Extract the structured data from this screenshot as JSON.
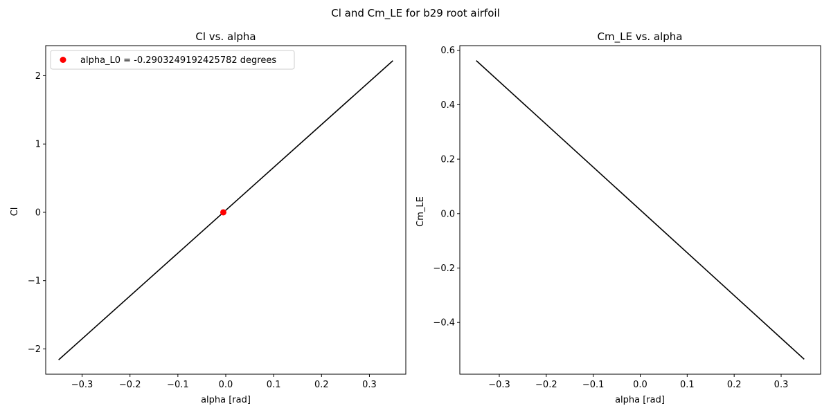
{
  "figure": {
    "suptitle": "Cl and Cm_LE for b29 root airfoil"
  },
  "chart_data": [
    {
      "type": "line",
      "title": "Cl vs. alpha",
      "xlabel": "alpha [rad]",
      "ylabel": "Cl",
      "xlim": [
        -0.376,
        0.376
      ],
      "ylim": [
        -2.37,
        2.44
      ],
      "xticks": [
        -0.3,
        -0.2,
        -0.1,
        0.0,
        0.1,
        0.2,
        0.3
      ],
      "xtick_labels": [
        "−0.3",
        "−0.2",
        "−0.1",
        "0.0",
        "0.1",
        "0.2",
        "0.3"
      ],
      "yticks": [
        -2,
        -1,
        0,
        1,
        2
      ],
      "ytick_labels": [
        "−2",
        "−1",
        "0",
        "1",
        "2"
      ],
      "grid": false,
      "series": [
        {
          "x": [
            -0.349,
            0.349
          ],
          "y": [
            -2.16,
            2.22
          ],
          "color": "#000000",
          "style": "line"
        },
        {
          "name": "alpha_L0 = -0.2903249192425782 degrees",
          "x": [
            -0.00507
          ],
          "y": [
            0.0
          ],
          "color": "#ff0000",
          "style": "marker"
        }
      ],
      "legend": {
        "position": "upper-left",
        "entries": [
          "alpha_L0 = -0.2903249192425782 degrees"
        ]
      }
    },
    {
      "type": "line",
      "title": "Cm_LE vs. alpha",
      "xlabel": "alpha [rad]",
      "ylabel": "Cm_LE",
      "xlim": [
        -0.384,
        0.384
      ],
      "ylim": [
        -0.59,
        0.617
      ],
      "xticks": [
        -0.3,
        -0.2,
        -0.1,
        0.0,
        0.1,
        0.2,
        0.3
      ],
      "xtick_labels": [
        "−0.3",
        "−0.2",
        "−0.1",
        "0.0",
        "0.1",
        "0.2",
        "0.3"
      ],
      "yticks": [
        -0.4,
        -0.2,
        0.0,
        0.2,
        0.4,
        0.6
      ],
      "ytick_labels": [
        "−0.4",
        "−0.2",
        "0.0",
        "0.2",
        "0.4",
        "0.6"
      ],
      "grid": false,
      "series": [
        {
          "x": [
            -0.349,
            0.349
          ],
          "y": [
            0.562,
            -0.535
          ],
          "color": "#000000",
          "style": "line"
        }
      ]
    }
  ]
}
